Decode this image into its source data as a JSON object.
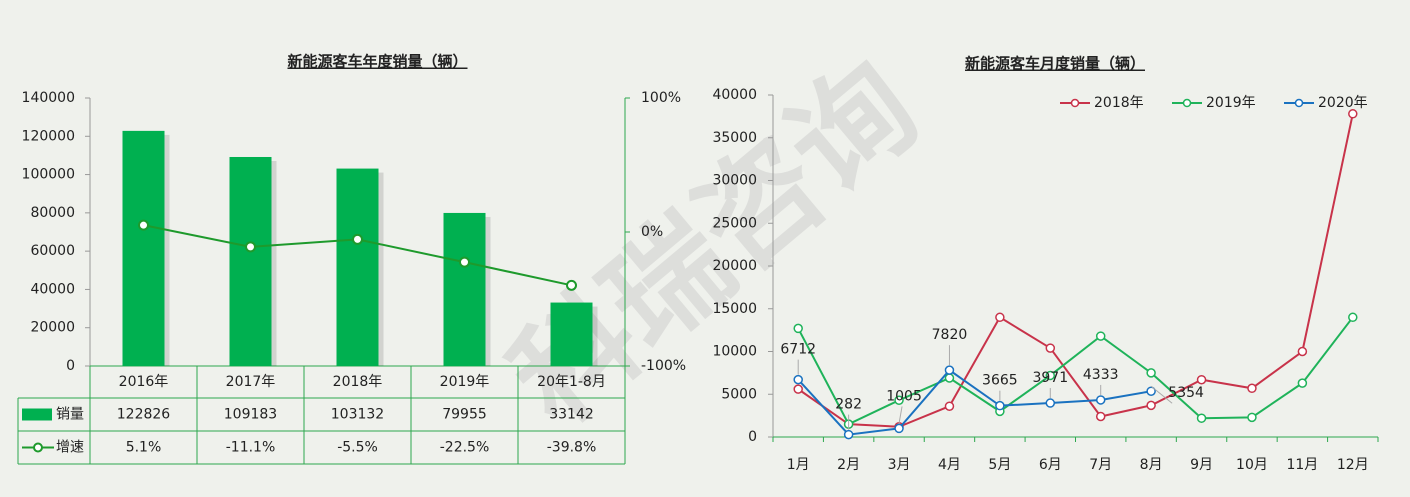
{
  "watermark": "科瑞咨询",
  "chart_data": [
    {
      "type": "bar",
      "title": "新能源客车年度销量（辆）",
      "categories": [
        "2016年",
        "2017年",
        "2018年",
        "2019年",
        "20年1-8月"
      ],
      "series": [
        {
          "name": "销量",
          "color": "#00b050",
          "values": [
            122826,
            109183,
            103132,
            79955,
            33142
          ]
        },
        {
          "name": "增速",
          "color": "#1e9a2c",
          "type": "line",
          "axis": "y2",
          "values": [
            5.1,
            -11.1,
            -5.5,
            -22.5,
            -39.8
          ],
          "value_labels": [
            "5.1%",
            "-11.1%",
            "-5.5%",
            "-22.5%",
            "-39.8%"
          ]
        }
      ],
      "ylim": [
        0,
        140000
      ],
      "yticks": [
        0,
        20000,
        40000,
        60000,
        80000,
        100000,
        120000,
        140000
      ],
      "y2lim": [
        -100,
        100
      ],
      "y2ticks": [
        {
          "value": -100,
          "label": "-100%"
        },
        {
          "value": 0,
          "label": "0%"
        },
        {
          "value": 100,
          "label": "100%"
        }
      ]
    },
    {
      "type": "line",
      "title": "新能源客车月度销量（辆）",
      "categories": [
        "1月",
        "2月",
        "3月",
        "4月",
        "5月",
        "6月",
        "7月",
        "8月",
        "9月",
        "10月",
        "11月",
        "12月"
      ],
      "series": [
        {
          "name": "2018年",
          "color": "#c8334a",
          "values": [
            5600,
            1500,
            1200,
            3600,
            14000,
            10400,
            2400,
            3700,
            6700,
            5700,
            10000,
            37800
          ]
        },
        {
          "name": "2019年",
          "color": "#1fb35a",
          "values": [
            12700,
            1500,
            4300,
            6900,
            3000,
            7200,
            11800,
            7500,
            2200,
            2300,
            6300,
            14000
          ]
        },
        {
          "name": "2020年",
          "color": "#1a72c0",
          "values": [
            6712,
            282,
            1005,
            7820,
            3665,
            3971,
            4333,
            5354,
            null,
            null,
            null,
            null
          ],
          "data_labels": true
        }
      ],
      "ylim": [
        0,
        40000
      ],
      "yticks": [
        0,
        5000,
        10000,
        15000,
        20000,
        25000,
        30000,
        35000,
        40000
      ],
      "legend": "top-right"
    }
  ]
}
